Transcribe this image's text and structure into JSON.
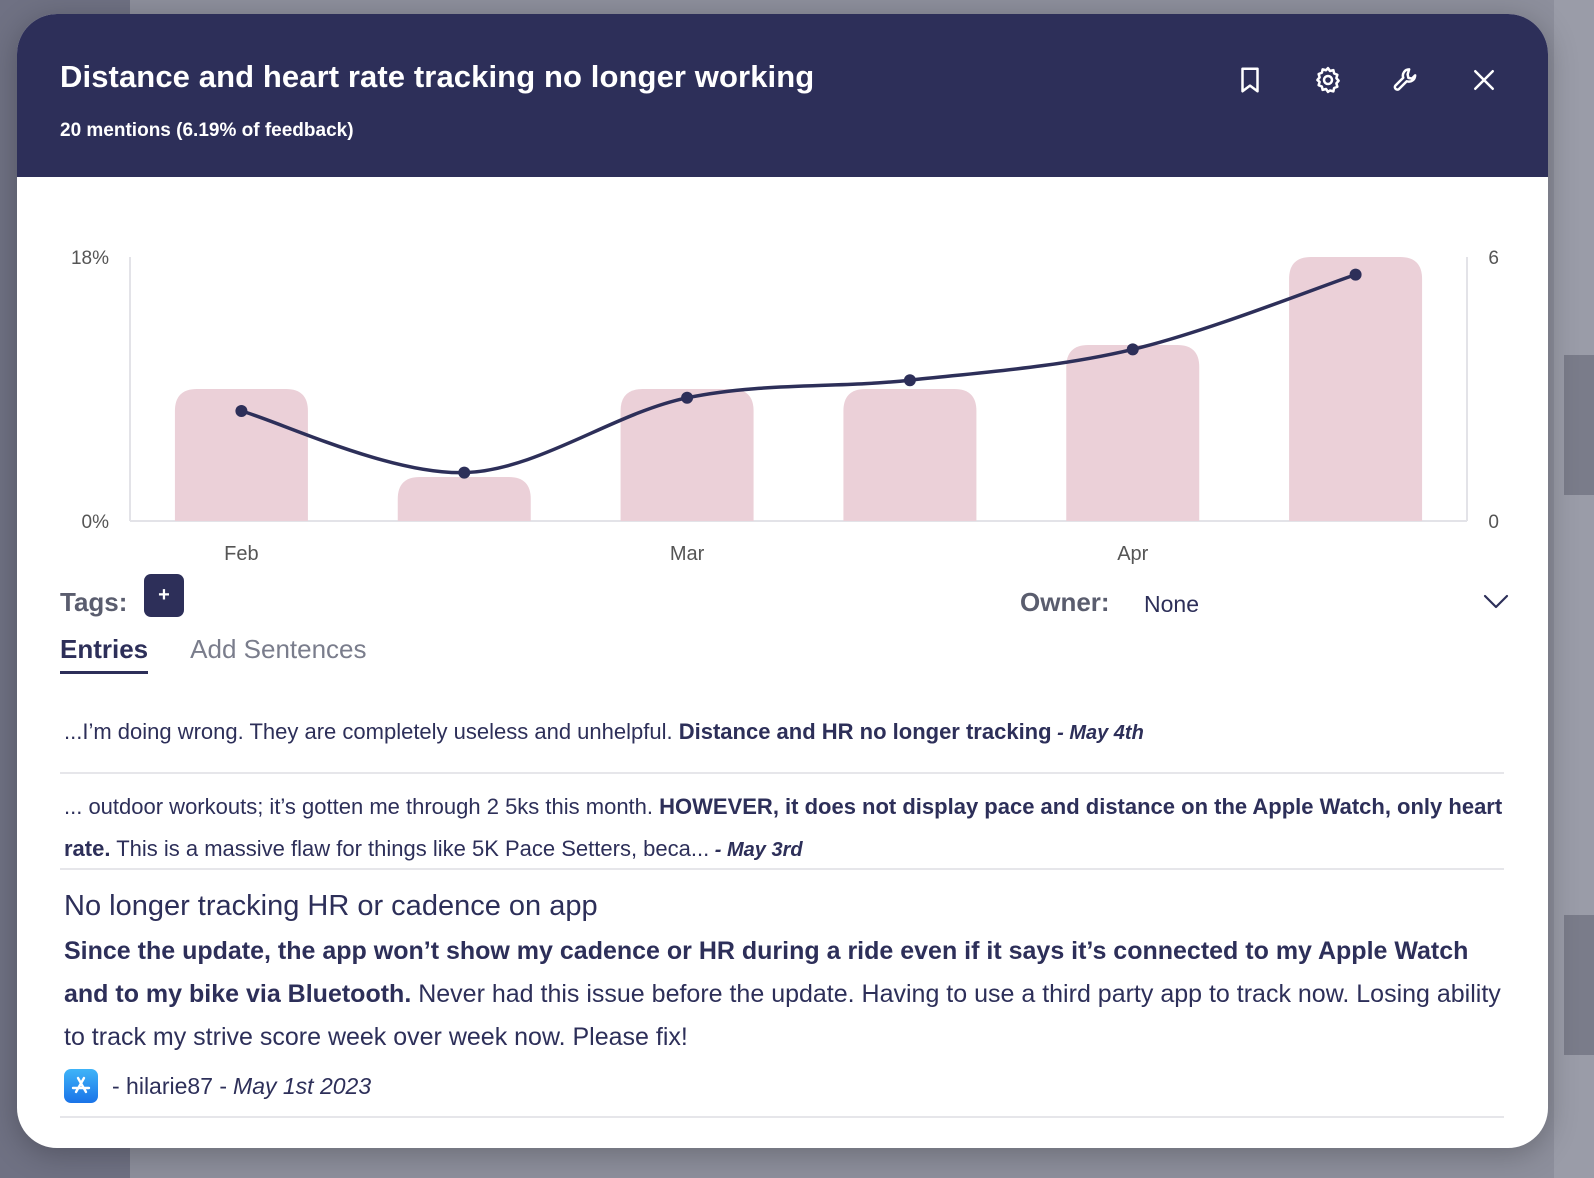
{
  "modal": {
    "title": "Distance and heart rate tracking no longer working",
    "subtitle": "20 mentions (6.19% of feedback)",
    "actions": [
      "bookmark-icon",
      "gear-icon",
      "wrench-icon",
      "close-icon"
    ]
  },
  "chart_data": {
    "type": "bar",
    "categories": [
      "Feb",
      "Feb",
      "Mar",
      "Mar",
      "Apr",
      "Apr"
    ],
    "x_tick_labels": [
      "Feb",
      "Mar",
      "Apr"
    ],
    "bars": [
      9,
      3,
      9,
      9,
      12,
      18
    ],
    "line": [
      2.5,
      1.1,
      2.8,
      3.2,
      3.9,
      5.6
    ],
    "left_axis": {
      "labels": [
        "18%",
        "0%"
      ],
      "min": 0,
      "max": 18
    },
    "right_axis": {
      "labels": [
        "6",
        "0"
      ],
      "min": 0,
      "max": 6
    },
    "bar_color": "#ebd0d8",
    "line_color": "#2d2f59"
  },
  "tags": {
    "label": "Tags:",
    "add_label": "+"
  },
  "owner": {
    "label": "Owner:",
    "value": "None"
  },
  "tabs": [
    {
      "label": "Entries",
      "active": true
    },
    {
      "label": "Add Sentences",
      "active": false
    }
  ],
  "entries": [
    {
      "prefix": "...I’m doing wrong. They are completely useless and unhelpful. ",
      "highlight": "Distance and HR no longer tracking",
      "date": " - May 4th"
    },
    {
      "prefix": "... outdoor workouts; it’s gotten me through 2 5ks this month. ",
      "highlight": "HOWEVER, it does not display pace and distance on the Apple Watch, only heart rate.",
      "suffix": " This is a massive flaw for things like 5K Pace Setters, beca...",
      "date": " - May 3rd"
    },
    {
      "title": "No longer tracking HR or cadence on app",
      "highlight": "Since the update, the app won’t show my cadence or HR during a ride even if it says it’s connected to my Apple Watch and to my bike via Bluetooth.",
      "suffix": " Never had this issue before the update. Having to use a third party app to track now. Losing ability to track my strive score week over week now. Please fix!",
      "author": "- hilarie87 -",
      "date": "May 1st 2023"
    }
  ]
}
